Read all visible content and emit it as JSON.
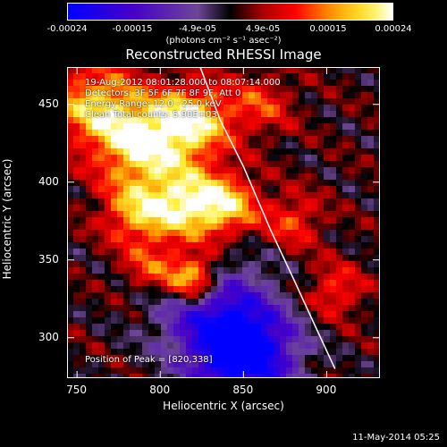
{
  "chart_data": {
    "type": "heatmap",
    "title": "Reconstructed RHESSI Image",
    "xlabel": "Heliocentric X (arcsec)",
    "ylabel": "Heliocentric Y (arcsec)",
    "xlim": [
      744,
      932
    ],
    "ylim": [
      274,
      474
    ],
    "x_ticks": [
      750,
      800,
      850,
      900
    ],
    "y_ticks": [
      300,
      350,
      400,
      450
    ],
    "colorbar": {
      "ticks": [
        "-0.00024",
        "-0.00015",
        "-4.9e-05",
        "4.9e-05",
        "0.00015",
        "0.00024"
      ],
      "range": [
        -0.00024,
        0.00024
      ],
      "units": "(photons cm⁻² s⁻¹ asec⁻²)"
    },
    "annotations": {
      "time_range": "19-Aug-2012 08:01:28.000 to 08:07:14.000",
      "detectors": "Detectors: 3F 5F 6F 7F 8F 9F, Att 0",
      "energy": "Energy Range: 12.0 - 25.0 keV",
      "method": "Clean     Total counts: 5.90E+03",
      "peak": "Position of Peak = [820,338]"
    },
    "peak_position": [
      820,
      338
    ],
    "limb_curve": [
      [
        824,
        474
      ],
      [
        836,
        440
      ],
      [
        850,
        410
      ],
      [
        866,
        370
      ],
      [
        880,
        338
      ],
      [
        892,
        310
      ],
      [
        905,
        280
      ]
    ]
  },
  "footer": "11-May-2014 05:25"
}
